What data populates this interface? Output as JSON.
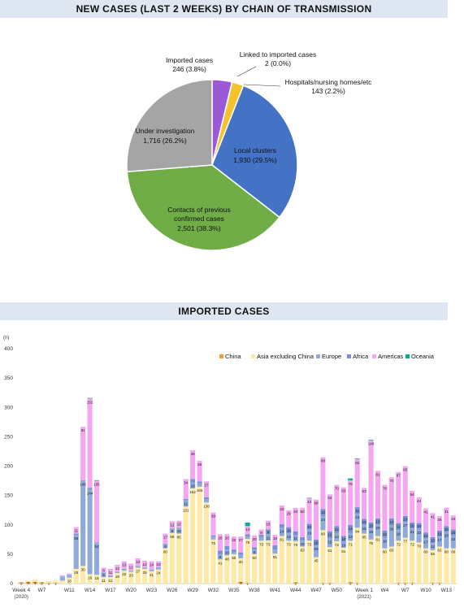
{
  "chart_data": [
    {
      "type": "pie",
      "title": "NEW CASES (LAST 2 WEEKS) BY CHAIN OF TRANSMISSION",
      "slices": [
        {
          "name": "Imported cases",
          "value": 246,
          "pct": "3.8%",
          "color": "#9b59d6",
          "label_name": "Imported cases",
          "label_value": "246 (3.8%)"
        },
        {
          "name": "Linked to imported cases",
          "value": 2,
          "pct": "0.0%",
          "color": "#e8484a",
          "label_name": "Linked to imported cases",
          "label_value": "2 (0.0%)"
        },
        {
          "name": "Hospitals/nursing homes/etc",
          "value": 143,
          "pct": "2.2%",
          "color": "#f4c22b",
          "label_name": "Hospitals/nursing homes/etc",
          "label_value": "143 (2.2%)"
        },
        {
          "name": "Local clusters",
          "value": 1930,
          "pct": "29.5%",
          "color": "#4472c4",
          "label_name": "Local clusters",
          "label_value": "1,930 (29.5%)"
        },
        {
          "name": "Contacts of previous confirmed cases",
          "value": 2501,
          "pct": "38.3%",
          "color": "#70ad47",
          "label_name_1": "Contacts of previous",
          "label_name_2": "confirmed cases",
          "label_value": "2,501 (38.3%)"
        },
        {
          "name": "Under investigation",
          "value": 1716,
          "pct": "26.2%",
          "color": "#a5a5a5",
          "label_name": "Under investigation",
          "label_value": "1,716 (26.2%)"
        }
      ]
    },
    {
      "type": "bar",
      "stacked": true,
      "title": "IMPORTED CASES",
      "ylabel": "(n)",
      "ylim": [
        0,
        400
      ],
      "yticks": [
        "0",
        "50",
        "100",
        "150",
        "200",
        "250",
        "300",
        "350",
        "400"
      ],
      "xtick_labels": [
        {
          "week": 4,
          "text": "Week 4",
          "sub": "(2020)"
        },
        {
          "week": 7,
          "text": "W7"
        },
        {
          "week": 11,
          "text": "W11"
        },
        {
          "week": 14,
          "text": "W14"
        },
        {
          "week": 17,
          "text": "W17"
        },
        {
          "week": 20,
          "text": "W20"
        },
        {
          "week": 23,
          "text": "W23"
        },
        {
          "week": 26,
          "text": "W26"
        },
        {
          "week": 29,
          "text": "W29"
        },
        {
          "week": 32,
          "text": "W32"
        },
        {
          "week": 35,
          "text": "W35"
        },
        {
          "week": 38,
          "text": "W38"
        },
        {
          "week": 41,
          "text": "W41"
        },
        {
          "week": 44,
          "text": "W44"
        },
        {
          "week": 47,
          "text": "W47"
        },
        {
          "week": 50,
          "text": "W50"
        },
        {
          "week": 54,
          "text": "Week 1",
          "sub": "(2021)"
        },
        {
          "week": 57,
          "text": "W4"
        },
        {
          "week": 60,
          "text": "W7"
        },
        {
          "week": 63,
          "text": "W10"
        },
        {
          "week": 66,
          "text": "W13"
        }
      ],
      "x_first_week": 4,
      "x_last_week": 67,
      "series_colors": {
        "China": "#f0a030",
        "Asia excluding China": "#fde9a3",
        "Europe": "#8eaadb",
        "Africa": "#7b8fd4",
        "Americas": "#f4a6f0",
        "Oceania": "#00b08a"
      },
      "legend": [
        "China",
        "Asia excluding China",
        "Europe",
        "Africa",
        "Americas",
        "Oceania"
      ],
      "legend_position": "top-right",
      "bars": [
        {
          "w": 4,
          "c": 2,
          "a": 0,
          "e": 0,
          "f": 0,
          "m": 0,
          "o": 0
        },
        {
          "w": 5,
          "c": 3,
          "a": 2,
          "e": 0,
          "f": 0,
          "m": 0,
          "o": 0
        },
        {
          "w": 6,
          "c": 3,
          "a": 4,
          "e": 0,
          "f": 0,
          "m": 0,
          "o": 0
        },
        {
          "w": 7,
          "c": 2,
          "a": 1,
          "e": 0,
          "f": 0,
          "m": 0,
          "o": 0
        },
        {
          "w": 8,
          "c": 1,
          "a": 3,
          "e": 0,
          "f": 0,
          "m": 0,
          "o": 0
        },
        {
          "w": 9,
          "c": 1,
          "a": 4,
          "e": 0,
          "f": 0,
          "m": 0,
          "o": 0
        },
        {
          "w": 10,
          "c": 0,
          "a": 5,
          "e": 7,
          "f": 0,
          "m": 2,
          "o": 0
        },
        {
          "w": 11,
          "c": 0,
          "a": 10,
          "e": 5,
          "f": 0,
          "m": 2,
          "o": 0
        },
        {
          "w": 12,
          "c": 0,
          "a": 25,
          "e": 58,
          "f": 2,
          "m": 11,
          "o": 0
        },
        {
          "w": 13,
          "c": 0,
          "a": 30,
          "e": 145,
          "f": 1,
          "m": 91,
          "o": 0
        },
        {
          "w": 14,
          "c": 0,
          "a": 16,
          "e": 144,
          "f": 3,
          "m": 152,
          "o": 1
        },
        {
          "w": 15,
          "c": 0,
          "a": 15,
          "e": 54,
          "f": 1,
          "m": 105,
          "o": 1
        },
        {
          "w": 16,
          "c": 0,
          "a": 11,
          "e": 8,
          "f": 0,
          "m": 8,
          "o": 0
        },
        {
          "w": 17,
          "c": 0,
          "a": 11,
          "e": 3,
          "f": 0,
          "m": 11,
          "o": 0
        },
        {
          "w": 18,
          "c": 0,
          "a": 18,
          "e": 2,
          "f": 0,
          "m": 12,
          "o": 0
        },
        {
          "w": 19,
          "c": 0,
          "a": 22,
          "e": 3,
          "f": 0,
          "m": 13,
          "o": 0
        },
        {
          "w": 20,
          "c": 0,
          "a": 20,
          "e": 2,
          "f": 0,
          "m": 12,
          "o": 0
        },
        {
          "w": 21,
          "c": 0,
          "a": 27,
          "e": 3,
          "f": 0,
          "m": 13,
          "o": 0
        },
        {
          "w": 22,
          "c": 0,
          "a": 25,
          "e": 2,
          "f": 0,
          "m": 12,
          "o": 0
        },
        {
          "w": 23,
          "c": 0,
          "a": 21,
          "e": 3,
          "f": 0,
          "m": 14,
          "o": 0
        },
        {
          "w": 24,
          "c": 0,
          "a": 24,
          "e": 4,
          "f": 0,
          "m": 10,
          "o": 0
        },
        {
          "w": 25,
          "c": 0,
          "a": 60,
          "e": 8,
          "f": 0,
          "m": 17,
          "o": 0
        },
        {
          "w": 26,
          "c": 0,
          "a": 86,
          "e": 8,
          "f": 0,
          "m": 12,
          "o": 0
        },
        {
          "w": 27,
          "c": 0,
          "a": 85,
          "e": 10,
          "f": 0,
          "m": 12,
          "o": 0
        },
        {
          "w": 28,
          "c": 0,
          "a": 131,
          "e": 11,
          "f": 2,
          "m": 34,
          "o": 0
        },
        {
          "w": 29,
          "c": 0,
          "a": 162,
          "e": 10,
          "f": 6,
          "m": 49,
          "o": 0
        },
        {
          "w": 30,
          "c": 0,
          "a": 165,
          "e": 6,
          "f": 3,
          "m": 35,
          "o": 0
        },
        {
          "w": 31,
          "c": 0,
          "a": 138,
          "e": 5,
          "f": 4,
          "m": 27,
          "o": 0
        },
        {
          "w": 32,
          "c": 0,
          "a": 75,
          "e": 5,
          "f": 2,
          "m": 39,
          "o": 0
        },
        {
          "w": 33,
          "c": 0,
          "a": 41,
          "e": 9,
          "f": 6,
          "m": 28,
          "o": 0
        },
        {
          "w": 34,
          "c": 0,
          "a": 48,
          "e": 10,
          "f": 6,
          "m": 20,
          "o": 0
        },
        {
          "w": 35,
          "c": 0,
          "a": 50,
          "e": 4,
          "f": 4,
          "m": 22,
          "o": 0
        },
        {
          "w": 36,
          "c": 3,
          "a": 40,
          "e": 6,
          "f": 4,
          "m": 27,
          "o": 0
        },
        {
          "w": 37,
          "c": 1,
          "a": 75,
          "e": 4,
          "f": 4,
          "m": 14,
          "o": 6
        },
        {
          "w": 38,
          "c": 0,
          "a": 50,
          "e": 8,
          "f": 4,
          "m": 20,
          "o": 0
        },
        {
          "w": 39,
          "c": 0,
          "a": 73,
          "e": 6,
          "f": 4,
          "m": 9,
          "o": 0
        },
        {
          "w": 40,
          "c": 0,
          "a": 73,
          "e": 11,
          "f": 8,
          "m": 15,
          "o": 0
        },
        {
          "w": 41,
          "c": 0,
          "a": 51,
          "e": 7,
          "f": 7,
          "m": 18,
          "o": 0
        },
        {
          "w": 42,
          "c": 0,
          "a": 81,
          "e": 14,
          "f": 6,
          "m": 32,
          "o": 0
        },
        {
          "w": 43,
          "c": 0,
          "a": 73,
          "e": 13,
          "f": 10,
          "m": 29,
          "o": 0
        },
        {
          "w": 44,
          "c": 2,
          "a": 70,
          "e": 11,
          "f": 6,
          "m": 40,
          "o": 0
        },
        {
          "w": 45,
          "c": 0,
          "a": 63,
          "e": 10,
          "f": 6,
          "m": 50,
          "o": 0
        },
        {
          "w": 46,
          "c": 0,
          "a": 73,
          "e": 19,
          "f": 10,
          "m": 43,
          "o": 1
        },
        {
          "w": 47,
          "c": 0,
          "a": 45,
          "e": 20,
          "f": 10,
          "m": 68,
          "o": 0
        },
        {
          "w": 48,
          "c": 1,
          "a": 90,
          "e": 24,
          "f": 12,
          "m": 88,
          "o": 0
        },
        {
          "w": 49,
          "c": 1,
          "a": 61,
          "e": 15,
          "f": 12,
          "m": 63,
          "o": 0
        },
        {
          "w": 50,
          "c": 0,
          "a": 72,
          "e": 14,
          "f": 12,
          "m": 70,
          "o": 0
        },
        {
          "w": 51,
          "c": 0,
          "a": 61,
          "e": 10,
          "f": 10,
          "m": 83,
          "o": 0
        },
        {
          "w": 52,
          "c": 2,
          "a": 71,
          "e": 13,
          "f": 14,
          "m": 76,
          "o": 3
        },
        {
          "w": 53,
          "c": 1,
          "a": 94,
          "e": 24,
          "f": 11,
          "m": 82,
          "o": 1
        },
        {
          "w": 54,
          "c": 0,
          "a": 85,
          "e": 15,
          "f": 10,
          "m": 53,
          "o": 0
        },
        {
          "w": 55,
          "c": 0,
          "a": 75,
          "e": 19,
          "f": 10,
          "m": 140,
          "o": 1
        },
        {
          "w": 56,
          "c": 0,
          "a": 81,
          "e": 20,
          "f": 10,
          "m": 81,
          "o": 0
        },
        {
          "w": 57,
          "c": 0,
          "a": 60,
          "e": 18,
          "f": 12,
          "m": 78,
          "o": 0
        },
        {
          "w": 58,
          "c": 0,
          "a": 63,
          "e": 36,
          "f": 12,
          "m": 70,
          "o": 0
        },
        {
          "w": 59,
          "c": 1,
          "a": 72,
          "e": 18,
          "f": 12,
          "m": 87,
          "o": 0
        },
        {
          "w": 60,
          "c": 1,
          "a": 77,
          "e": 27,
          "f": 10,
          "m": 85,
          "o": 0
        },
        {
          "w": 61,
          "c": 1,
          "a": 72,
          "e": 21,
          "f": 10,
          "m": 54,
          "o": 0
        },
        {
          "w": 62,
          "c": 0,
          "a": 70,
          "e": 23,
          "f": 10,
          "m": 44,
          "o": 0
        },
        {
          "w": 63,
          "c": 0,
          "a": 60,
          "e": 17,
          "f": 10,
          "m": 41,
          "o": 0
        },
        {
          "w": 64,
          "c": 1,
          "a": 56,
          "e": 12,
          "f": 10,
          "m": 41,
          "o": 0
        },
        {
          "w": 65,
          "c": 1,
          "a": 62,
          "e": 17,
          "f": 10,
          "m": 25,
          "o": 0
        },
        {
          "w": 66,
          "c": 0,
          "a": 60,
          "e": 28,
          "f": 10,
          "m": 31,
          "o": 0
        },
        {
          "w": 67,
          "c": 0,
          "a": 60,
          "e": 22,
          "f": 10,
          "m": 24,
          "o": 0
        }
      ]
    }
  ]
}
